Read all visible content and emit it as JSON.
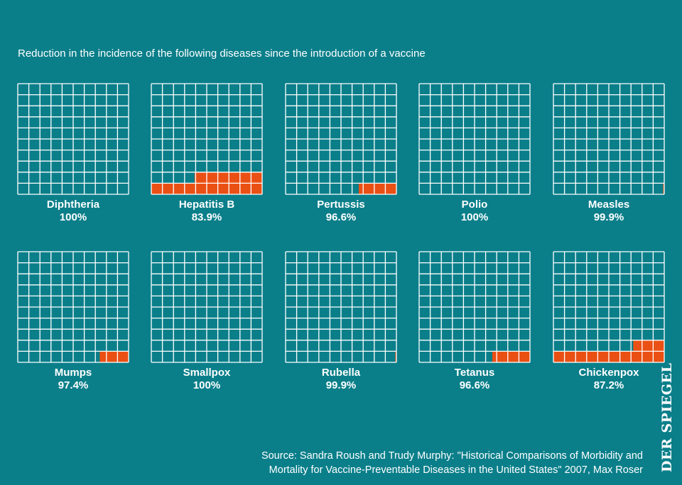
{
  "subtitle": "Reduction in the incidence of the following diseases since the introduction of a vaccine",
  "colors": {
    "background": "#0a7f8a",
    "grid": "#ffffff",
    "remaining": "#ea5014"
  },
  "chart_data": {
    "type": "waffle",
    "grid": [
      10,
      10
    ],
    "unit": "%",
    "items": [
      {
        "name": "Diphtheria",
        "reduction_label": "100%",
        "reduction": 100
      },
      {
        "name": "Hepatitis B",
        "reduction_label": "83.9%",
        "reduction": 83.9
      },
      {
        "name": "Pertussis",
        "reduction_label": "96.6%",
        "reduction": 96.6
      },
      {
        "name": "Polio",
        "reduction_label": "100%",
        "reduction": 100
      },
      {
        "name": "Measles",
        "reduction_label": "99.9%",
        "reduction": 99.9
      },
      {
        "name": "Mumps",
        "reduction_label": "97.4%",
        "reduction": 97.4
      },
      {
        "name": "Smallpox",
        "reduction_label": "100%",
        "reduction": 100
      },
      {
        "name": "Rubella",
        "reduction_label": "99.9%",
        "reduction": 99.9
      },
      {
        "name": "Tetanus",
        "reduction_label": "96.6%",
        "reduction": 96.6
      },
      {
        "name": "Chickenpox",
        "reduction_label": "87.2%",
        "reduction": 87.2
      }
    ]
  },
  "source": {
    "line1": "Source: Sandra Roush and Trudy Murphy: \"Historical Comparisons of Morbidity and",
    "line2": "Mortality for Vaccine-Preventable Diseases in the United States\" 2007, Max Roser"
  },
  "logo": "DER SPIEGEL"
}
